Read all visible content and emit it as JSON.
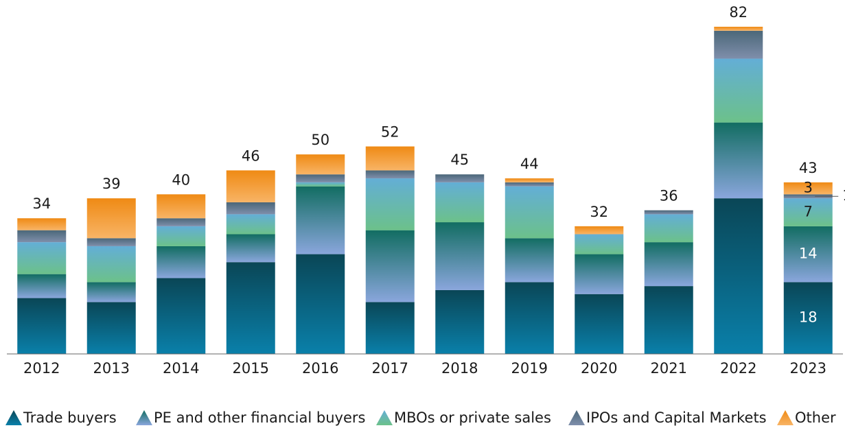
{
  "chart_data": {
    "type": "stacked-bar",
    "categories": [
      "2012",
      "2013",
      "2014",
      "2015",
      "2016",
      "2017",
      "2018",
      "2019",
      "2020",
      "2021",
      "2022",
      "2023"
    ],
    "series": [
      {
        "name": "Trade buyers",
        "color": [
          "#0a4656",
          "#0a80aa"
        ],
        "values": [
          14,
          13,
          19,
          23,
          25,
          13,
          16,
          18,
          15,
          17,
          39,
          18
        ]
      },
      {
        "name": "PE and other financial buyers",
        "color": [
          "#126d62",
          "#8aa6dc"
        ],
        "values": [
          6,
          5,
          8,
          7,
          17,
          18,
          17,
          11,
          10,
          11,
          19,
          14
        ]
      },
      {
        "name": "MBOs or private sales",
        "color": [
          "#63aed6",
          "#6cc18a"
        ],
        "values": [
          8,
          9,
          5,
          5,
          1,
          13,
          10,
          13,
          5,
          7,
          16,
          7
        ]
      },
      {
        "name": "IPOs and Capital Markets",
        "color": [
          "#4b6779",
          "#7f8fab"
        ],
        "values": [
          3,
          2,
          2,
          3,
          2,
          2,
          2,
          1,
          0,
          1,
          7,
          1
        ]
      },
      {
        "name": "Other",
        "color": [
          "#ef8a14",
          "#f8b466"
        ],
        "values": [
          3,
          10,
          6,
          8,
          5,
          6,
          0,
          1,
          2,
          0,
          1,
          3
        ]
      }
    ],
    "totals": [
      34,
      39,
      40,
      46,
      50,
      52,
      45,
      44,
      32,
      36,
      82,
      43
    ]
  }
}
